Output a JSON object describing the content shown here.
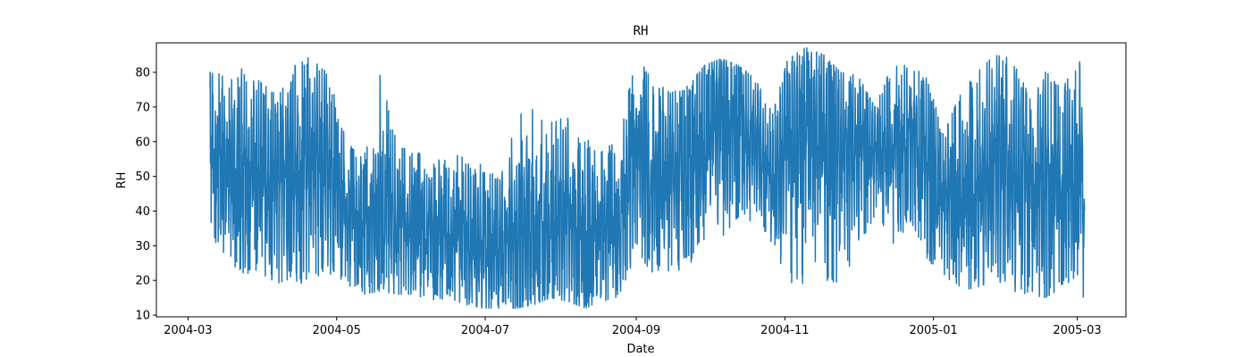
{
  "chart_data": {
    "type": "line",
    "title": "RH",
    "xlabel": "Date",
    "ylabel": "RH",
    "x_tick_labels": [
      "2004-03",
      "2004-05",
      "2004-07",
      "2004-09",
      "2004-11",
      "2005-01",
      "2005-03"
    ],
    "y_ticks": [
      10,
      20,
      30,
      40,
      50,
      60,
      70,
      80
    ],
    "xlim": [
      "2004-02-17",
      "2005-03-21"
    ],
    "ylim": [
      9.5,
      88.5
    ],
    "grid": false,
    "line_color": "#1f77b4",
    "series": [
      {
        "x": [
          "2004-03-10",
          "2004-03-17",
          "2004-03-24",
          "2004-03-31",
          "2004-04-07",
          "2004-04-14",
          "2004-04-21",
          "2004-04-28",
          "2004-05-05",
          "2004-05-12",
          "2004-05-19",
          "2004-05-26",
          "2004-06-02",
          "2004-06-09",
          "2004-06-16",
          "2004-06-23",
          "2004-06-30",
          "2004-07-07",
          "2004-07-14",
          "2004-07-21",
          "2004-07-28",
          "2004-08-04",
          "2004-08-11",
          "2004-08-18",
          "2004-08-25",
          "2004-09-01",
          "2004-09-08",
          "2004-09-15",
          "2004-09-22",
          "2004-09-29",
          "2004-10-06",
          "2004-10-13",
          "2004-10-20",
          "2004-10-27",
          "2004-11-03",
          "2004-11-10",
          "2004-11-17",
          "2004-11-24",
          "2004-12-01",
          "2004-12-08",
          "2004-12-15",
          "2004-12-22",
          "2004-12-29",
          "2005-01-05",
          "2005-01-12",
          "2005-01-19",
          "2005-01-26",
          "2005-02-02",
          "2005-02-09",
          "2005-02-16",
          "2005-02-23",
          "2005-03-02",
          "2005-03-04"
        ],
        "min": [
          34,
          25,
          22,
          22,
          19,
          18,
          21,
          22,
          19,
          16,
          17,
          16,
          16,
          14,
          15,
          13,
          12,
          12,
          12,
          13,
          15,
          14,
          12,
          14,
          15,
          28,
          22,
          22,
          24,
          30,
          32,
          38,
          36,
          30,
          16,
          20,
          19,
          18,
          30,
          38,
          30,
          36,
          26,
          22,
          17,
          18,
          20,
          17,
          16,
          15,
          18,
          22,
          13
        ],
        "max": [
          80,
          81,
          81,
          77,
          73,
          82,
          85,
          79,
          60,
          55,
          80,
          61,
          60,
          53,
          57,
          56,
          53,
          49,
          68,
          70,
          66,
          67,
          62,
          58,
          60,
          87,
          78,
          74,
          76,
          82,
          84,
          82,
          78,
          68,
          86,
          87,
          85,
          80,
          79,
          70,
          82,
          82,
          79,
          63,
          75,
          80,
          85,
          84,
          74,
          80,
          77,
          83,
          63
        ],
        "mean": [
          58,
          52,
          50,
          52,
          50,
          51,
          53,
          52,
          40,
          35,
          38,
          36,
          37,
          34,
          34,
          33,
          30,
          30,
          33,
          36,
          38,
          37,
          34,
          36,
          38,
          54,
          50,
          50,
          52,
          60,
          64,
          64,
          60,
          52,
          60,
          62,
          60,
          55,
          56,
          60,
          58,
          60,
          54,
          44,
          42,
          48,
          54,
          52,
          46,
          46,
          48,
          50,
          40
        ]
      }
    ]
  }
}
